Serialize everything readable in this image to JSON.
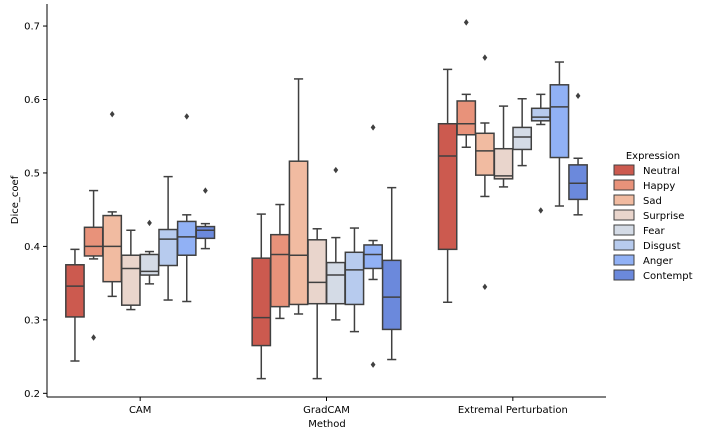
{
  "chart_data": {
    "type": "box",
    "xlabel": "Method",
    "ylabel": "Dice_coef",
    "ylim": [
      0.195,
      0.73
    ],
    "yticks": [
      0.2,
      0.3,
      0.4,
      0.5,
      0.6,
      0.7
    ],
    "ytick_labels": [
      "0.2",
      "0.3",
      "0.4",
      "0.5",
      "0.6",
      "0.7"
    ],
    "categories": [
      "CAM",
      "GradCAM",
      "Extremal Perturbation"
    ],
    "legend": {
      "title": "Expression",
      "position": "right",
      "entries": [
        "Neutral",
        "Happy",
        "Sad",
        "Surprise",
        "Fear",
        "Disgust",
        "Anger",
        "Contempt"
      ]
    },
    "series": [
      {
        "name": "Neutral",
        "color": "#cc5a4f",
        "boxes": [
          {
            "whislo": 0.244,
            "q1": 0.304,
            "med": 0.346,
            "q3": 0.375,
            "whishi": 0.396,
            "fliers": []
          },
          {
            "whislo": 0.22,
            "q1": 0.265,
            "med": 0.303,
            "q3": 0.384,
            "whishi": 0.444,
            "fliers": []
          },
          {
            "whislo": 0.324,
            "q1": 0.396,
            "med": 0.523,
            "q3": 0.567,
            "whishi": 0.641,
            "fliers": []
          }
        ]
      },
      {
        "name": "Happy",
        "color": "#e8927a",
        "boxes": [
          {
            "whislo": 0.383,
            "q1": 0.387,
            "med": 0.4,
            "q3": 0.426,
            "whishi": 0.476,
            "fliers": [
              0.276
            ]
          },
          {
            "whislo": 0.302,
            "q1": 0.318,
            "med": 0.389,
            "q3": 0.416,
            "whishi": 0.457,
            "fliers": []
          },
          {
            "whislo": 0.535,
            "q1": 0.552,
            "med": 0.567,
            "q3": 0.598,
            "whishi": 0.607,
            "fliers": [
              0.705
            ]
          }
        ]
      },
      {
        "name": "Sad",
        "color": "#f1bba1",
        "boxes": [
          {
            "whislo": 0.332,
            "q1": 0.352,
            "med": 0.4,
            "q3": 0.442,
            "whishi": 0.447,
            "fliers": [
              0.58
            ]
          },
          {
            "whislo": 0.308,
            "q1": 0.321,
            "med": 0.388,
            "q3": 0.516,
            "whishi": 0.628,
            "fliers": []
          },
          {
            "whislo": 0.468,
            "q1": 0.497,
            "med": 0.53,
            "q3": 0.554,
            "whishi": 0.568,
            "fliers": [
              0.657,
              0.345
            ]
          }
        ]
      },
      {
        "name": "Surprise",
        "color": "#e9d5cc",
        "boxes": [
          {
            "whislo": 0.314,
            "q1": 0.32,
            "med": 0.37,
            "q3": 0.388,
            "whishi": 0.422,
            "fliers": []
          },
          {
            "whislo": 0.22,
            "q1": 0.322,
            "med": 0.351,
            "q3": 0.409,
            "whishi": 0.424,
            "fliers": []
          },
          {
            "whislo": 0.481,
            "q1": 0.492,
            "med": 0.496,
            "q3": 0.533,
            "whishi": 0.591,
            "fliers": []
          }
        ]
      },
      {
        "name": "Fear",
        "color": "#d4dbe6",
        "boxes": [
          {
            "whislo": 0.349,
            "q1": 0.361,
            "med": 0.366,
            "q3": 0.389,
            "whishi": 0.393,
            "fliers": [
              0.432
            ]
          },
          {
            "whislo": 0.3,
            "q1": 0.322,
            "med": 0.361,
            "q3": 0.378,
            "whishi": 0.412,
            "fliers": [
              0.504
            ]
          },
          {
            "whislo": 0.51,
            "q1": 0.532,
            "med": 0.549,
            "q3": 0.562,
            "whishi": 0.601,
            "fliers": []
          }
        ]
      },
      {
        "name": "Disgust",
        "color": "#b7cbee",
        "boxes": [
          {
            "whislo": 0.327,
            "q1": 0.374,
            "med": 0.41,
            "q3": 0.423,
            "whishi": 0.495,
            "fliers": []
          },
          {
            "whislo": 0.284,
            "q1": 0.321,
            "med": 0.368,
            "q3": 0.392,
            "whishi": 0.425,
            "fliers": []
          },
          {
            "whislo": 0.566,
            "q1": 0.571,
            "med": 0.576,
            "q3": 0.588,
            "whishi": 0.607,
            "fliers": [
              0.449
            ]
          }
        ]
      },
      {
        "name": "Anger",
        "color": "#91b1f5",
        "boxes": [
          {
            "whislo": 0.325,
            "q1": 0.388,
            "med": 0.413,
            "q3": 0.434,
            "whishi": 0.443,
            "fliers": [
              0.577
            ]
          },
          {
            "whislo": 0.355,
            "q1": 0.37,
            "med": 0.389,
            "q3": 0.402,
            "whishi": 0.408,
            "fliers": [
              0.562,
              0.239
            ]
          },
          {
            "whislo": 0.455,
            "q1": 0.521,
            "med": 0.59,
            "q3": 0.62,
            "whishi": 0.651,
            "fliers": []
          }
        ]
      },
      {
        "name": "Contempt",
        "color": "#6b89dc",
        "boxes": [
          {
            "whislo": 0.397,
            "q1": 0.411,
            "med": 0.422,
            "q3": 0.427,
            "whishi": 0.431,
            "fliers": [
              0.476
            ]
          },
          {
            "whislo": 0.246,
            "q1": 0.287,
            "med": 0.331,
            "q3": 0.381,
            "whishi": 0.48,
            "fliers": []
          },
          {
            "whislo": 0.443,
            "q1": 0.464,
            "med": 0.486,
            "q3": 0.511,
            "whishi": 0.52,
            "fliers": [
              0.605
            ]
          }
        ]
      }
    ]
  }
}
